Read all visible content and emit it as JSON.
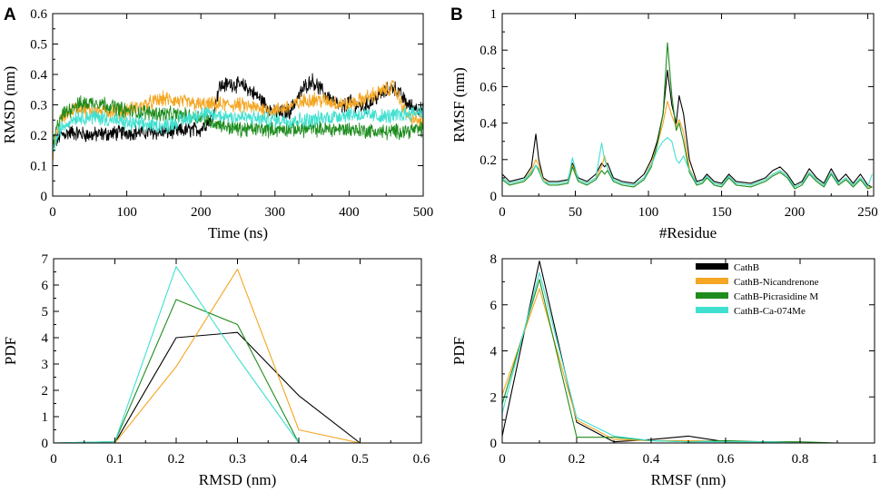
{
  "figure": {
    "panel_letters": [
      "A",
      "B"
    ]
  },
  "legend": {
    "entries": [
      {
        "name": "CathB",
        "color": "#000000"
      },
      {
        "name": "CathB-Nicandrenone",
        "color": "#f5a623"
      },
      {
        "name": "CathB-Picrasidine M",
        "color": "#1e8c1e"
      },
      {
        "name": "CathB-Ca-074Me",
        "color": "#40e0d0"
      }
    ]
  },
  "chart_data": [
    {
      "id": "rmsd-time",
      "type": "line",
      "panel": "A",
      "title": "",
      "xlabel": "Time (ns)",
      "ylabel": "RMSD (nm)",
      "xlim": [
        0,
        500
      ],
      "ylim": [
        0,
        0.6
      ],
      "xticks": [
        0,
        100,
        200,
        300,
        400,
        500
      ],
      "yticks": [
        0,
        0.1,
        0.2,
        0.3,
        0.4,
        0.5,
        0.6
      ],
      "xtick_labels": [
        "0",
        "100",
        "200",
        "300",
        "400",
        "500"
      ],
      "ytick_labels": [
        "0",
        "0.1",
        "0.2",
        "0.3",
        "0.4",
        "0.5",
        "0.6"
      ],
      "noisy": true,
      "series": [
        {
          "name": "CathB",
          "color": "#000000",
          "x": [
            0,
            10,
            25,
            50,
            100,
            150,
            200,
            215,
            225,
            240,
            260,
            280,
            300,
            320,
            340,
            350,
            370,
            390,
            400,
            420,
            440,
            460,
            480,
            500
          ],
          "y": [
            0.16,
            0.2,
            0.21,
            0.2,
            0.21,
            0.21,
            0.22,
            0.26,
            0.36,
            0.37,
            0.36,
            0.32,
            0.27,
            0.28,
            0.36,
            0.38,
            0.33,
            0.29,
            0.31,
            0.29,
            0.33,
            0.36,
            0.3,
            0.28
          ]
        },
        {
          "name": "CathB-Nicandrenone",
          "color": "#f5a623",
          "x": [
            0,
            10,
            30,
            60,
            100,
            150,
            200,
            250,
            300,
            350,
            400,
            430,
            460,
            480,
            500
          ],
          "y": [
            0.14,
            0.25,
            0.29,
            0.28,
            0.28,
            0.32,
            0.3,
            0.3,
            0.28,
            0.32,
            0.3,
            0.33,
            0.36,
            0.26,
            0.24
          ]
        },
        {
          "name": "CathB-Picrasidine M",
          "color": "#1e8c1e",
          "x": [
            0,
            10,
            30,
            60,
            100,
            150,
            200,
            220,
            250,
            300,
            350,
            400,
            450,
            500
          ],
          "y": [
            0.17,
            0.26,
            0.3,
            0.31,
            0.28,
            0.27,
            0.26,
            0.24,
            0.22,
            0.22,
            0.22,
            0.22,
            0.21,
            0.22
          ]
        },
        {
          "name": "CathB-Ca-074Me",
          "color": "#40e0d0",
          "x": [
            0,
            10,
            30,
            60,
            100,
            150,
            200,
            250,
            300,
            350,
            400,
            450,
            500
          ],
          "y": [
            0.15,
            0.22,
            0.26,
            0.26,
            0.24,
            0.23,
            0.27,
            0.26,
            0.25,
            0.25,
            0.27,
            0.26,
            0.28
          ]
        }
      ]
    },
    {
      "id": "rmsf-residue",
      "type": "line",
      "panel": "B",
      "title": "",
      "xlabel": "#Residue",
      "ylabel": "RMSF (nm)",
      "xlim": [
        0,
        254
      ],
      "ylim": [
        0,
        1
      ],
      "xticks": [
        0,
        50,
        100,
        150,
        200,
        250
      ],
      "yticks": [
        0,
        0.2,
        0.4,
        0.6,
        0.8,
        1
      ],
      "xtick_labels": [
        "0",
        "50",
        "100",
        "150",
        "200",
        "250"
      ],
      "ytick_labels": [
        "0",
        "0.2",
        "0.4",
        "0.6",
        "0.8",
        "1"
      ],
      "noisy": false,
      "series": [
        {
          "name": "CathB",
          "color": "#000000",
          "x": [
            0,
            5,
            10,
            15,
            20,
            23,
            25,
            28,
            32,
            38,
            45,
            48,
            52,
            58,
            64,
            68,
            70,
            72,
            76,
            82,
            90,
            97,
            102,
            106,
            110,
            113,
            116,
            119,
            121,
            124,
            128,
            133,
            137,
            140,
            145,
            150,
            155,
            160,
            170,
            180,
            185,
            190,
            195,
            200,
            205,
            210,
            215,
            220,
            225,
            230,
            235,
            240,
            245,
            250,
            253
          ],
          "y": [
            0.12,
            0.08,
            0.09,
            0.1,
            0.16,
            0.34,
            0.2,
            0.1,
            0.08,
            0.08,
            0.09,
            0.18,
            0.1,
            0.08,
            0.12,
            0.18,
            0.16,
            0.18,
            0.1,
            0.08,
            0.07,
            0.12,
            0.2,
            0.3,
            0.45,
            0.69,
            0.5,
            0.4,
            0.55,
            0.45,
            0.2,
            0.08,
            0.09,
            0.12,
            0.08,
            0.07,
            0.12,
            0.08,
            0.07,
            0.1,
            0.14,
            0.16,
            0.12,
            0.06,
            0.08,
            0.15,
            0.1,
            0.07,
            0.15,
            0.08,
            0.12,
            0.07,
            0.12,
            0.06,
            0.05
          ]
        },
        {
          "name": "CathB-Nicandrenone",
          "color": "#f5a623",
          "x": [
            0,
            5,
            10,
            15,
            20,
            23,
            25,
            28,
            32,
            38,
            45,
            48,
            52,
            58,
            64,
            68,
            70,
            72,
            76,
            82,
            90,
            97,
            102,
            106,
            110,
            113,
            116,
            119,
            121,
            124,
            128,
            133,
            137,
            140,
            145,
            150,
            155,
            160,
            170,
            180,
            185,
            190,
            195,
            200,
            205,
            210,
            215,
            220,
            225,
            230,
            235,
            240,
            245,
            250,
            253
          ],
          "y": [
            0.1,
            0.07,
            0.08,
            0.09,
            0.14,
            0.2,
            0.17,
            0.09,
            0.07,
            0.07,
            0.08,
            0.17,
            0.09,
            0.07,
            0.1,
            0.16,
            0.22,
            0.15,
            0.09,
            0.07,
            0.06,
            0.1,
            0.18,
            0.28,
            0.4,
            0.52,
            0.44,
            0.38,
            0.42,
            0.35,
            0.15,
            0.07,
            0.08,
            0.11,
            0.07,
            0.06,
            0.11,
            0.07,
            0.06,
            0.09,
            0.12,
            0.14,
            0.11,
            0.05,
            0.07,
            0.13,
            0.09,
            0.06,
            0.13,
            0.07,
            0.1,
            0.06,
            0.1,
            0.05,
            0.05
          ]
        },
        {
          "name": "CathB-Picrasidine M",
          "color": "#1e8c1e",
          "x": [
            0,
            5,
            10,
            15,
            20,
            23,
            25,
            28,
            32,
            38,
            45,
            48,
            52,
            58,
            64,
            68,
            70,
            72,
            76,
            82,
            90,
            97,
            102,
            106,
            110,
            113,
            116,
            119,
            121,
            124,
            128,
            133,
            137,
            140,
            145,
            150,
            155,
            160,
            170,
            180,
            185,
            190,
            195,
            200,
            205,
            210,
            215,
            220,
            225,
            230,
            235,
            240,
            245,
            250,
            253
          ],
          "y": [
            0.09,
            0.06,
            0.07,
            0.08,
            0.12,
            0.17,
            0.14,
            0.08,
            0.06,
            0.06,
            0.07,
            0.16,
            0.08,
            0.06,
            0.09,
            0.14,
            0.12,
            0.14,
            0.08,
            0.06,
            0.05,
            0.09,
            0.16,
            0.28,
            0.45,
            0.84,
            0.55,
            0.36,
            0.4,
            0.3,
            0.13,
            0.06,
            0.07,
            0.1,
            0.06,
            0.05,
            0.1,
            0.06,
            0.05,
            0.08,
            0.11,
            0.13,
            0.1,
            0.04,
            0.06,
            0.12,
            0.08,
            0.05,
            0.12,
            0.06,
            0.09,
            0.05,
            0.09,
            0.04,
            0.05
          ]
        },
        {
          "name": "CathB-Ca-074Me",
          "color": "#40e0d0",
          "x": [
            0,
            5,
            10,
            15,
            20,
            23,
            25,
            28,
            32,
            38,
            45,
            48,
            52,
            58,
            64,
            68,
            70,
            72,
            76,
            82,
            90,
            97,
            102,
            106,
            110,
            113,
            116,
            119,
            121,
            124,
            128,
            133,
            137,
            140,
            145,
            150,
            155,
            160,
            170,
            180,
            185,
            190,
            195,
            200,
            205,
            210,
            215,
            220,
            225,
            230,
            235,
            240,
            245,
            250,
            253
          ],
          "y": [
            0.1,
            0.07,
            0.08,
            0.09,
            0.13,
            0.17,
            0.15,
            0.08,
            0.07,
            0.07,
            0.08,
            0.21,
            0.09,
            0.07,
            0.1,
            0.29,
            0.2,
            0.15,
            0.09,
            0.07,
            0.06,
            0.1,
            0.17,
            0.25,
            0.3,
            0.32,
            0.3,
            0.2,
            0.18,
            0.22,
            0.14,
            0.07,
            0.08,
            0.11,
            0.07,
            0.06,
            0.11,
            0.07,
            0.06,
            0.09,
            0.12,
            0.14,
            0.11,
            0.05,
            0.07,
            0.13,
            0.09,
            0.06,
            0.13,
            0.07,
            0.1,
            0.06,
            0.1,
            0.05,
            0.12
          ]
        }
      ]
    },
    {
      "id": "rmsd-pdf",
      "type": "line",
      "panel": "A",
      "title": "",
      "xlabel": "RMSD (nm)",
      "ylabel": "PDF",
      "xlim": [
        0,
        0.6
      ],
      "ylim": [
        0,
        7
      ],
      "xticks": [
        0,
        0.1,
        0.2,
        0.3,
        0.4,
        0.5,
        0.6
      ],
      "yticks": [
        0,
        1,
        2,
        3,
        4,
        5,
        6,
        7
      ],
      "xtick_labels": [
        "0",
        "0.1",
        "0.2",
        "0.3",
        "0.4",
        "0.5",
        "0.6"
      ],
      "ytick_labels": [
        "0",
        "1",
        "2",
        "3",
        "4",
        "5",
        "6",
        "7"
      ],
      "noisy": false,
      "series": [
        {
          "name": "CathB",
          "color": "#000000",
          "x": [
            0,
            0.1,
            0.2,
            0.3,
            0.4,
            0.5,
            0.55
          ],
          "y": [
            0,
            0,
            4.0,
            4.2,
            1.8,
            0,
            0
          ]
        },
        {
          "name": "CathB-Nicandrenone",
          "color": "#f5a623",
          "x": [
            0,
            0.1,
            0.2,
            0.3,
            0.4,
            0.5,
            0.55
          ],
          "y": [
            0,
            0,
            2.9,
            6.6,
            0.5,
            0,
            0
          ]
        },
        {
          "name": "CathB-Picrasidine M",
          "color": "#1e8c1e",
          "x": [
            0,
            0.1,
            0.2,
            0.3,
            0.4,
            0.5,
            0.55
          ],
          "y": [
            0,
            0.05,
            5.45,
            4.5,
            0,
            0,
            0
          ]
        },
        {
          "name": "CathB-Ca-074Me",
          "color": "#40e0d0",
          "x": [
            0,
            0.1,
            0.2,
            0.3,
            0.4,
            0.5,
            0.55
          ],
          "y": [
            0,
            0.05,
            6.7,
            3.25,
            0,
            0,
            0
          ]
        }
      ]
    },
    {
      "id": "rmsf-pdf",
      "type": "line",
      "panel": "B",
      "title": "",
      "xlabel": "RMSF (nm)",
      "ylabel": "PDF",
      "xlim": [
        0,
        1
      ],
      "ylim": [
        0,
        8
      ],
      "xticks": [
        0,
        0.2,
        0.4,
        0.6,
        0.8,
        1
      ],
      "yticks": [
        0,
        2,
        4,
        6,
        8
      ],
      "xtick_labels": [
        "0",
        "0.2",
        "0.4",
        "0.6",
        "0.8",
        "1"
      ],
      "ytick_labels": [
        "0",
        "2",
        "4",
        "6",
        "8"
      ],
      "noisy": false,
      "series": [
        {
          "name": "CathB",
          "color": "#000000",
          "x": [
            0,
            0.1,
            0.2,
            0.3,
            0.4,
            0.5,
            0.6,
            0.7,
            0.8,
            0.9
          ],
          "y": [
            0.3,
            7.9,
            0.9,
            0.05,
            0.15,
            0.3,
            0.05,
            0.05,
            0,
            0
          ]
        },
        {
          "name": "CathB-Nicandrenone",
          "color": "#f5a623",
          "x": [
            0,
            0.1,
            0.2,
            0.3,
            0.4,
            0.5,
            0.6,
            0.7,
            0.8,
            0.9
          ],
          "y": [
            2.1,
            6.7,
            1.0,
            0.15,
            0.1,
            0.1,
            0.05,
            0.05,
            0,
            0
          ]
        },
        {
          "name": "CathB-Picrasidine M",
          "color": "#1e8c1e",
          "x": [
            0,
            0.1,
            0.2,
            0.3,
            0.4,
            0.5,
            0.6,
            0.7,
            0.8,
            0.9
          ],
          "y": [
            1.7,
            7.1,
            0.25,
            0.25,
            0.1,
            0.05,
            0.1,
            0.05,
            0.05,
            0
          ]
        },
        {
          "name": "CathB-Ca-074Me",
          "color": "#40e0d0",
          "x": [
            0,
            0.1,
            0.2,
            0.3,
            0.4,
            0.5,
            0.6,
            0.7,
            0.8,
            0.9
          ],
          "y": [
            1.3,
            7.4,
            1.1,
            0.3,
            0.1,
            0.05,
            0.05,
            0.05,
            0,
            0
          ]
        }
      ]
    }
  ]
}
